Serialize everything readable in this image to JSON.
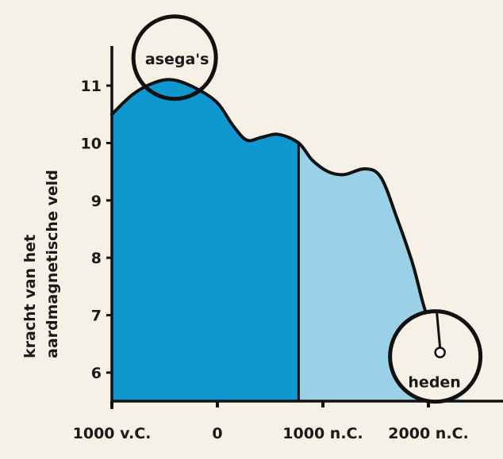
{
  "chart_data": {
    "type": "area",
    "title": "",
    "xlabel": "",
    "ylabel": [
      "kracht van het",
      "aardmagnetische veld"
    ],
    "xlim": [
      -1000,
      2500
    ],
    "ylim": [
      5.5,
      11.7
    ],
    "x_ticks": [
      {
        "value": -1000,
        "label": "1000 v.C."
      },
      {
        "value": 0,
        "label": "0"
      },
      {
        "value": 1000,
        "label": "1000 n.C."
      },
      {
        "value": 2000,
        "label": "2000 n.C."
      }
    ],
    "y_ticks": [
      {
        "value": 6,
        "label": "6"
      },
      {
        "value": 7,
        "label": "7"
      },
      {
        "value": 8,
        "label": "8"
      },
      {
        "value": 9,
        "label": "9"
      },
      {
        "value": 10,
        "label": "10"
      },
      {
        "value": 11,
        "label": "11"
      }
    ],
    "grid": false,
    "series": [
      {
        "name": "kracht van het aardmagnetische veld",
        "x": [
          -1000,
          -800,
          -600,
          -420,
          -200,
          0,
          150,
          280,
          420,
          580,
          770,
          900,
          1050,
          1200,
          1400,
          1550,
          1700,
          1850,
          1950,
          2030,
          2110
        ],
        "y": [
          10.5,
          10.85,
          11.05,
          11.1,
          10.95,
          10.7,
          10.3,
          10.05,
          10.1,
          10.15,
          10.0,
          9.7,
          9.5,
          9.45,
          9.55,
          9.4,
          8.7,
          7.9,
          7.2,
          6.75,
          6.35
        ]
      }
    ],
    "regions": [
      {
        "name": "dark",
        "from": -1000,
        "to": 770,
        "color": "#0f97cf"
      },
      {
        "name": "light",
        "from": 770,
        "to": 2500,
        "color": "#9ad1e6"
      }
    ],
    "annotations": [
      {
        "label": "asega's",
        "x": -420,
        "y": 11.1
      },
      {
        "label": "heden",
        "x": 2110,
        "y": 6.35
      }
    ]
  }
}
